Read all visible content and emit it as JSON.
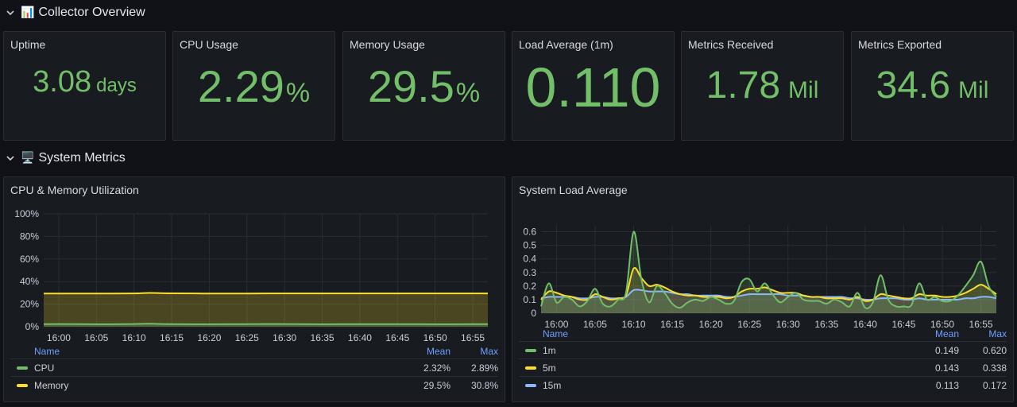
{
  "rows": {
    "overview": {
      "emoji": "📊",
      "title": "Collector Overview"
    },
    "system": {
      "emoji": "🖥️",
      "title": "System Metrics"
    }
  },
  "stats": [
    {
      "title": "Uptime",
      "value": "3.08",
      "unit": "days"
    },
    {
      "title": "CPU Usage",
      "value": "2.29",
      "unit": "%"
    },
    {
      "title": "Memory Usage",
      "value": "29.5",
      "unit": "%"
    },
    {
      "title": "Load Average (1m)",
      "value": "0.110",
      "unit": ""
    },
    {
      "title": "Metrics Received",
      "value": "1.78",
      "unit": "Mil"
    },
    {
      "title": "Metrics Exported",
      "value": "34.6",
      "unit": "Mil"
    }
  ],
  "colors": {
    "green": "#73bf69",
    "yellow": "#fade2a",
    "blue": "#8ab8ff",
    "legend_header": "#6e9fff"
  },
  "chart_data": [
    {
      "type": "area",
      "title": "CPU & Memory Utilization",
      "x": [
        "15:58",
        "16:00",
        "16:05",
        "16:10",
        "16:12",
        "16:15",
        "16:20",
        "16:25",
        "16:30",
        "16:35",
        "16:40",
        "16:45",
        "16:50",
        "16:55",
        "16:57"
      ],
      "x_ticks": [
        "16:00",
        "16:05",
        "16:10",
        "16:15",
        "16:20",
        "16:25",
        "16:30",
        "16:35",
        "16:40",
        "16:45",
        "16:50",
        "16:55"
      ],
      "y_ticks": [
        "100%",
        "80%",
        "60%",
        "40%",
        "20%",
        "0%"
      ],
      "ylim": [
        0,
        100
      ],
      "series": [
        {
          "name": "CPU",
          "color": "#73bf69",
          "values": [
            2.3,
            2.4,
            2.2,
            2.4,
            2.6,
            2.3,
            2.2,
            2.3,
            2.4,
            2.2,
            2.3,
            2.3,
            2.2,
            2.3,
            2.3
          ]
        },
        {
          "name": "Memory",
          "color": "#fade2a",
          "values": [
            29.4,
            29.4,
            29.4,
            29.5,
            29.9,
            29.6,
            29.4,
            29.4,
            29.5,
            29.5,
            29.5,
            29.5,
            29.5,
            29.5,
            29.5
          ]
        }
      ],
      "legend": {
        "headers": {
          "name": "Name",
          "mean": "Mean",
          "max": "Max"
        },
        "rows": [
          {
            "name": "CPU",
            "mean": "2.32%",
            "max": "2.89%"
          },
          {
            "name": "Memory",
            "mean": "29.5%",
            "max": "30.8%"
          }
        ]
      }
    },
    {
      "type": "area",
      "title": "System Load Average",
      "x": [
        "15:58",
        "15:59",
        "16:00",
        "16:01",
        "16:02",
        "16:03",
        "16:04",
        "16:05",
        "16:06",
        "16:07",
        "16:08",
        "16:09",
        "16:10",
        "16:11",
        "16:12",
        "16:13",
        "16:14",
        "16:15",
        "16:16",
        "16:17",
        "16:18",
        "16:19",
        "16:20",
        "16:21",
        "16:22",
        "16:23",
        "16:24",
        "16:25",
        "16:26",
        "16:27",
        "16:28",
        "16:29",
        "16:30",
        "16:31",
        "16:32",
        "16:33",
        "16:34",
        "16:35",
        "16:36",
        "16:37",
        "16:38",
        "16:39",
        "16:40",
        "16:41",
        "16:42",
        "16:43",
        "16:44",
        "16:45",
        "16:46",
        "16:47",
        "16:48",
        "16:49",
        "16:50",
        "16:51",
        "16:52",
        "16:53",
        "16:54",
        "16:55",
        "16:56",
        "16:57"
      ],
      "x_ticks": [
        "16:00",
        "16:05",
        "16:10",
        "16:15",
        "16:20",
        "16:25",
        "16:30",
        "16:35",
        "16:40",
        "16:45",
        "16:50",
        "16:55"
      ],
      "y_ticks": [
        "0.6",
        "0.5",
        "0.4",
        "0.3",
        "0.2",
        "0.1",
        "0"
      ],
      "ylim": [
        0,
        0.65
      ],
      "series": [
        {
          "name": "1m",
          "color": "#73bf69",
          "values": [
            0.05,
            0.22,
            0.08,
            0.12,
            0.1,
            0.05,
            0.09,
            0.18,
            0.07,
            0.05,
            0.1,
            0.15,
            0.6,
            0.25,
            0.08,
            0.2,
            0.15,
            0.07,
            0.04,
            0.08,
            0.1,
            0.09,
            0.12,
            0.1,
            0.07,
            0.09,
            0.23,
            0.25,
            0.16,
            0.22,
            0.14,
            0.08,
            0.12,
            0.15,
            0.1,
            0.09,
            0.09,
            0.07,
            0.1,
            0.08,
            0.05,
            0.15,
            0.04,
            0.08,
            0.28,
            0.1,
            0.05,
            0.05,
            0.06,
            0.22,
            0.1,
            0.12,
            0.09,
            0.09,
            0.13,
            0.2,
            0.28,
            0.38,
            0.2,
            0.12
          ]
        },
        {
          "name": "5m",
          "color": "#fade2a",
          "values": [
            0.1,
            0.16,
            0.15,
            0.13,
            0.12,
            0.1,
            0.1,
            0.14,
            0.12,
            0.1,
            0.11,
            0.13,
            0.33,
            0.26,
            0.2,
            0.21,
            0.19,
            0.16,
            0.14,
            0.13,
            0.13,
            0.12,
            0.12,
            0.12,
            0.11,
            0.12,
            0.16,
            0.18,
            0.18,
            0.19,
            0.17,
            0.15,
            0.15,
            0.15,
            0.13,
            0.12,
            0.12,
            0.11,
            0.11,
            0.11,
            0.1,
            0.12,
            0.09,
            0.1,
            0.14,
            0.13,
            0.12,
            0.11,
            0.11,
            0.14,
            0.13,
            0.13,
            0.12,
            0.12,
            0.13,
            0.15,
            0.18,
            0.21,
            0.18,
            0.14
          ]
        },
        {
          "name": "15m",
          "color": "#8ab8ff",
          "values": [
            0.11,
            0.12,
            0.12,
            0.12,
            0.12,
            0.11,
            0.11,
            0.12,
            0.12,
            0.11,
            0.11,
            0.12,
            0.17,
            0.17,
            0.16,
            0.16,
            0.16,
            0.15,
            0.14,
            0.14,
            0.13,
            0.13,
            0.13,
            0.13,
            0.12,
            0.12,
            0.13,
            0.14,
            0.14,
            0.14,
            0.14,
            0.14,
            0.13,
            0.13,
            0.13,
            0.12,
            0.12,
            0.12,
            0.12,
            0.12,
            0.11,
            0.11,
            0.1,
            0.1,
            0.11,
            0.11,
            0.11,
            0.1,
            0.1,
            0.11,
            0.1,
            0.1,
            0.1,
            0.1,
            0.1,
            0.11,
            0.11,
            0.12,
            0.12,
            0.11
          ]
        }
      ],
      "legend": {
        "headers": {
          "name": "Name",
          "mean": "Mean",
          "max": "Max"
        },
        "rows": [
          {
            "name": "1m",
            "mean": "0.149",
            "max": "0.620"
          },
          {
            "name": "5m",
            "mean": "0.143",
            "max": "0.338"
          },
          {
            "name": "15m",
            "mean": "0.113",
            "max": "0.172"
          }
        ]
      }
    }
  ]
}
